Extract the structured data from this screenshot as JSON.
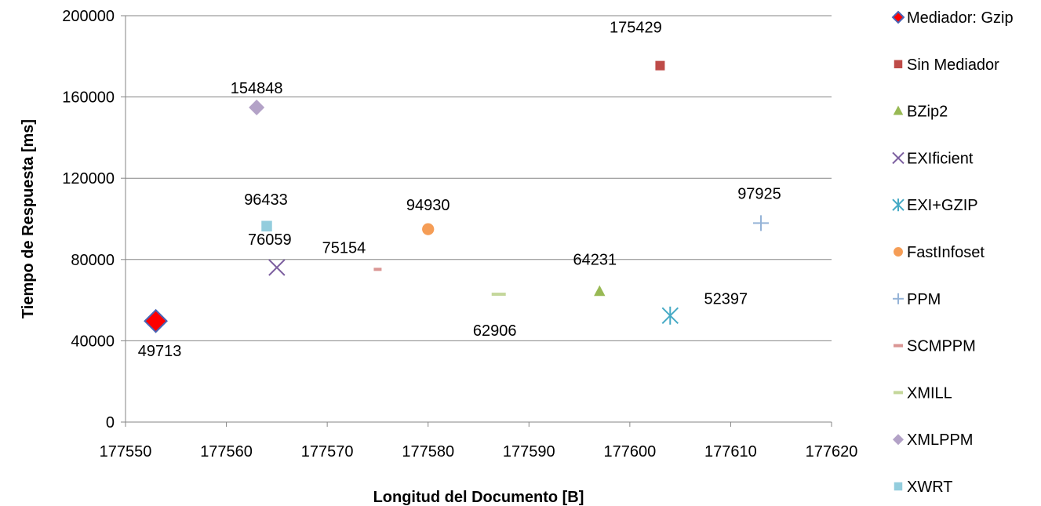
{
  "chart_data": {
    "type": "scatter",
    "xlabel": "Longitud del Documento [B]",
    "ylabel": "Tiempo de Respuesta [ms]",
    "xlim": [
      177550,
      177620
    ],
    "ylim": [
      0,
      200000
    ],
    "x_ticks": [
      "177550",
      "177560",
      "177570",
      "177580",
      "177590",
      "177600",
      "177610",
      "177620"
    ],
    "y_ticks": [
      "0",
      "40000",
      "80000",
      "120000",
      "160000",
      "200000"
    ],
    "grid": "horizontal",
    "legend_position": "right",
    "series": [
      {
        "name": "Mediador: Gzip",
        "marker": "diamond",
        "color": "#ff0000",
        "edge": "#4a64b5",
        "x": 177553,
        "y": 49713,
        "label": "49713"
      },
      {
        "name": "Sin Mediador",
        "marker": "square",
        "color": "#be4b48",
        "x": 177603,
        "y": 175429,
        "label": "175429"
      },
      {
        "name": "BZip2",
        "marker": "triangle",
        "color": "#98b954",
        "x": 177597,
        "y": 64231,
        "label": "64231"
      },
      {
        "name": "EXIficient",
        "marker": "x",
        "color": "#7d60a0",
        "x": 177565,
        "y": 76059,
        "label": "76059"
      },
      {
        "name": "EXI+GZIP",
        "marker": "star",
        "color": "#46aac5",
        "x": 177604,
        "y": 52397,
        "label": "52397"
      },
      {
        "name": "FastInfoset",
        "marker": "circle",
        "color": "#f59d56",
        "x": 177580,
        "y": 94930,
        "label": "94930"
      },
      {
        "name": "PPM",
        "marker": "plus",
        "color": "#95b3d7",
        "x": 177613,
        "y": 97925,
        "label": "97925"
      },
      {
        "name": "SCMPPM",
        "marker": "dash",
        "color": "#da9694",
        "x": 177575,
        "y": 75154,
        "label": "75154"
      },
      {
        "name": "XMILL",
        "marker": "dash",
        "color": "#c4d79b",
        "x": 177587,
        "y": 62906,
        "label": "62906"
      },
      {
        "name": "XMLPPM",
        "marker": "diamond",
        "color": "#b3a2c7",
        "x": 177563,
        "y": 154848,
        "label": "154848"
      },
      {
        "name": "XWRT",
        "marker": "square",
        "color": "#93cddd",
        "x": 177564,
        "y": 96433,
        "label": "96433"
      }
    ]
  }
}
